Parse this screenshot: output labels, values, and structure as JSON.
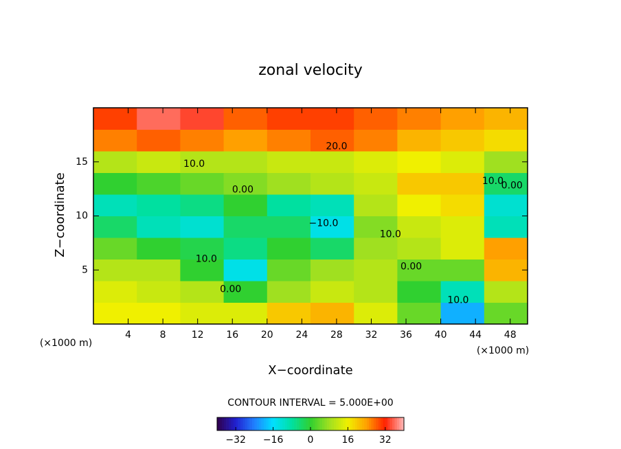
{
  "chart_data": {
    "type": "contour",
    "title": "zonal velocity",
    "xlabel": "X−coordinate",
    "ylabel": "Z−coordinate",
    "xunit": "(×1000 m)",
    "yunit": "(×1000 m)",
    "xlim": [
      0,
      50
    ],
    "ylim": [
      0,
      20
    ],
    "xticks": [
      4,
      8,
      12,
      16,
      20,
      24,
      28,
      32,
      36,
      40,
      44,
      48
    ],
    "yticks": [
      5,
      10,
      15
    ],
    "xedges": [
      0,
      5,
      10,
      15,
      20,
      25,
      30,
      35,
      40,
      45,
      50
    ],
    "yedges": [
      0,
      2,
      4,
      6,
      8,
      10,
      12,
      14,
      16,
      18,
      20
    ],
    "z": [
      [
        16,
        16,
        14,
        14,
        20,
        22,
        14,
        4,
        -20,
        4
      ],
      [
        14,
        12,
        10,
        0,
        8,
        12,
        10,
        0,
        -10,
        10
      ],
      [
        10,
        10,
        0,
        -14,
        4,
        8,
        10,
        4,
        4,
        22
      ],
      [
        4,
        0,
        -2,
        -6,
        0,
        -4,
        8,
        10,
        14,
        24
      ],
      [
        -4,
        -10,
        -12,
        -4,
        -4,
        -14,
        6,
        12,
        14,
        -10
      ],
      [
        -10,
        -8,
        -6,
        0,
        -8,
        -10,
        10,
        16,
        18,
        -12
      ],
      [
        0,
        2,
        4,
        6,
        8,
        10,
        12,
        20,
        20,
        -4
      ],
      [
        10,
        12,
        10,
        10,
        12,
        12,
        14,
        16,
        14,
        8
      ],
      [
        26,
        28,
        26,
        24,
        26,
        28,
        26,
        22,
        20,
        18
      ],
      [
        30,
        36,
        34,
        28,
        30,
        30,
        28,
        26,
        24,
        22
      ]
    ],
    "clim": [
      -40,
      40
    ],
    "colormap": [
      "#30004a",
      "#2020d0",
      "#2080ff",
      "#00e0ff",
      "#00e0a0",
      "#30d030",
      "#a0e020",
      "#f0f000",
      "#ffa000",
      "#ff2000",
      "#ffb8b8"
    ],
    "cticks": [
      {
        "value": -32,
        "label": "−32"
      },
      {
        "value": -16,
        "label": "−16"
      },
      0,
      16,
      32
    ],
    "contour_interval": "CONTOUR INTERVAL = 5.000E+00",
    "annotations": [
      {
        "text": "20.0",
        "x": 28,
        "y": 16.4
      },
      {
        "text": "10.0",
        "x": 11.6,
        "y": 14.8
      },
      {
        "text": "0.00",
        "x": 17.2,
        "y": 12.4
      },
      {
        "text": "−10.0",
        "x": 26.5,
        "y": 9.3
      },
      {
        "text": "10.0",
        "x": 34.2,
        "y": 8.3
      },
      {
        "text": "0.00",
        "x": 36.6,
        "y": 5.3
      },
      {
        "text": "10.0",
        "x": 13,
        "y": 6
      },
      {
        "text": "0.00",
        "x": 15.8,
        "y": 3.2
      },
      {
        "text": "10.0",
        "x": 42,
        "y": 2.2
      },
      {
        "text": "10.0",
        "x": 46,
        "y": 13.2
      },
      {
        "text": "0.00",
        "x": 48.2,
        "y": 12.8
      }
    ]
  }
}
